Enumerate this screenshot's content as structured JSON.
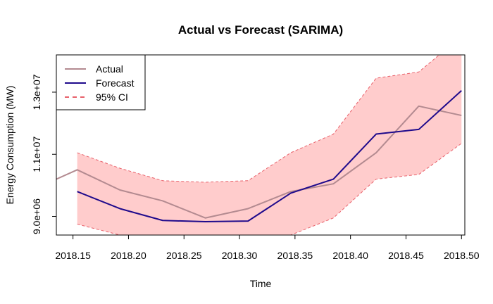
{
  "chart_data": {
    "type": "line",
    "title": "Actual vs Forecast (SARIMA)",
    "xlabel": "Time",
    "ylabel": "Energy Consumption (MW)",
    "xlim": [
      2018.135,
      2018.503
    ],
    "ylim": [
      8400000,
      14200000
    ],
    "x_ticks": [
      2018.15,
      2018.2,
      2018.25,
      2018.3,
      2018.35,
      2018.4,
      2018.45,
      2018.5
    ],
    "x_tick_labels": [
      "2018.15",
      "2018.20",
      "2018.25",
      "2018.30",
      "2018.35",
      "2018.40",
      "2018.45",
      "2018.50"
    ],
    "y_ticks": [
      9000000,
      11000000,
      13000000
    ],
    "y_tick_labels": [
      "9.0e+06",
      "1.1e+07",
      "1.3e+07"
    ],
    "grid": false,
    "legend_position": "top-left",
    "series": [
      {
        "name": "Actual",
        "color": "#B38A90",
        "style": "solid",
        "x": [
          2018.135,
          2018.1538,
          2018.1923,
          2018.2308,
          2018.2692,
          2018.3077,
          2018.3462,
          2018.3846,
          2018.4231,
          2018.4615,
          2018.5
        ],
        "values": [
          10200000,
          10500000,
          9850000,
          9500000,
          8950000,
          9250000,
          9800000,
          10050000,
          11050000,
          12550000,
          12250000
        ]
      },
      {
        "name": "Forecast",
        "color": "#1F0A8C",
        "style": "solid",
        "x": [
          2018.1538,
          2018.1923,
          2018.2308,
          2018.2692,
          2018.3077,
          2018.3462,
          2018.3846,
          2018.4231,
          2018.4615,
          2018.5
        ],
        "values": [
          9800000,
          9250000,
          8870000,
          8830000,
          8850000,
          9750000,
          10200000,
          11650000,
          11800000,
          13050000
        ]
      },
      {
        "name": "95% CI",
        "color": "#E8606A",
        "style": "dashed",
        "fill": "#FFCCCC",
        "x": [
          2018.1538,
          2018.1923,
          2018.2308,
          2018.2692,
          2018.3077,
          2018.3462,
          2018.3846,
          2018.4231,
          2018.4615,
          2018.5
        ],
        "lower": [
          8750000,
          8400000,
          8000000,
          8000000,
          8050000,
          8400000,
          8950000,
          10200000,
          10350000,
          11350000
        ],
        "upper": [
          11050000,
          10550000,
          10150000,
          10100000,
          10150000,
          11050000,
          11650000,
          13450000,
          13650000,
          14800000
        ]
      }
    ]
  }
}
